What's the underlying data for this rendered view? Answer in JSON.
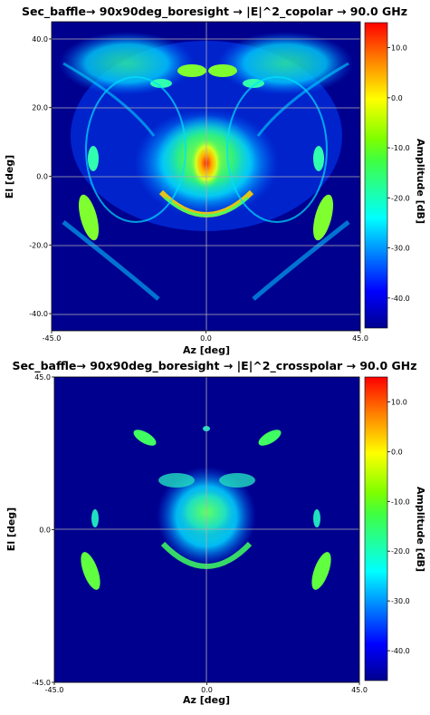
{
  "chart_data": [
    {
      "type": "heatmap",
      "title": "Sec_baffle→ 90x90deg_boresight → |E|^2_copolar → 90.0 GHz",
      "xlabel": "Az [deg]",
      "ylabel": "El [deg]",
      "colorbar_label": "Amplitude [dB]",
      "xlim": [
        -45.0,
        45.0
      ],
      "ylim": [
        -45.0,
        45.0
      ],
      "xticks": [
        "-45.0",
        "0.0",
        "45.0"
      ],
      "yticks": [
        "40.0",
        "20.0",
        "0.0",
        "-20.0",
        "-40.0"
      ],
      "ytick_values": [
        40,
        20,
        0,
        -20,
        -40
      ],
      "colorbar_ticks": [
        "10.0",
        "0.0",
        "-10.0",
        "-20.0",
        "-30.0",
        "-40.0"
      ],
      "colorbar_tick_values": [
        10,
        0,
        -10,
        -20,
        -30,
        -40
      ],
      "colorbar_range": [
        -46,
        15
      ],
      "colormap": "jet",
      "peak_dB": 13,
      "background_dB": -46
    },
    {
      "type": "heatmap",
      "title": "Sec_baffle→ 90x90deg_boresight → |E|^2_crosspolar → 90.0 GHz",
      "xlabel": "Az [deg]",
      "ylabel": "El [deg]",
      "colorbar_label": "Amplitude [dB]",
      "xlim": [
        -45.0,
        45.0
      ],
      "ylim": [
        -45.0,
        45.0
      ],
      "xticks": [
        "-45.0",
        "0.0",
        "45.0"
      ],
      "yticks": [
        "45.0",
        "0.0",
        "-45.0"
      ],
      "ytick_values": [
        45,
        0,
        -45
      ],
      "colorbar_ticks": [
        "10.0",
        "0.0",
        "-10.0",
        "-20.0",
        "-30.0",
        "-40.0"
      ],
      "colorbar_tick_values": [
        10,
        0,
        -10,
        -20,
        -30,
        -40
      ],
      "colorbar_range": [
        -46,
        15
      ],
      "colormap": "jet",
      "peak_dB": -22,
      "background_dB": -46
    }
  ]
}
